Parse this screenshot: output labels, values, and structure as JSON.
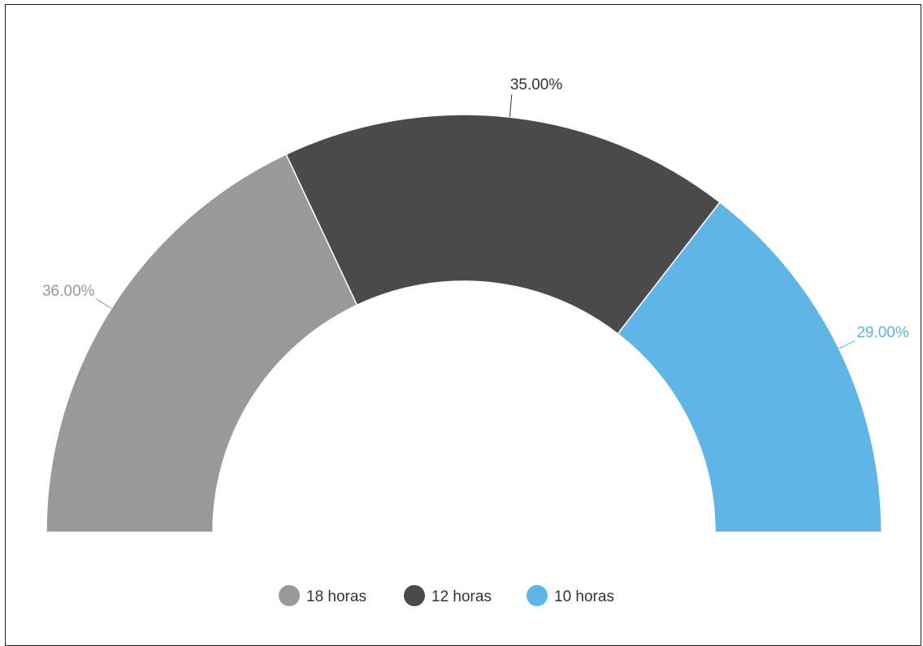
{
  "chart_data": {
    "type": "pie",
    "variant": "semi-donut",
    "series": [
      {
        "name": "18 horas",
        "value": 36.0,
        "label": "36.00%",
        "color": "#999999"
      },
      {
        "name": "12 horas",
        "value": 35.0,
        "label": "35.00%",
        "color": "#4a4a4a"
      },
      {
        "name": "10 horas",
        "value": 29.0,
        "label": "29.00%",
        "color": "#5fb5e5"
      }
    ],
    "legend_position": "bottom",
    "title": "",
    "subtitle": ""
  }
}
